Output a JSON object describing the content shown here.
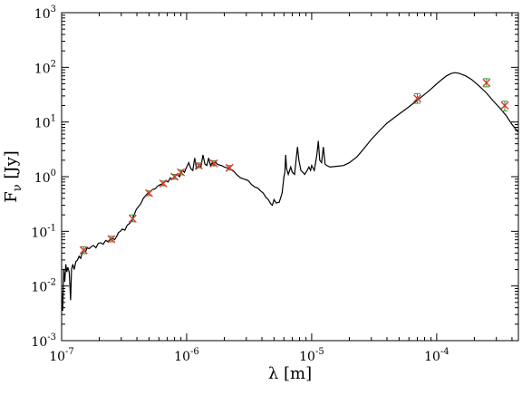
{
  "chart_data": {
    "type": "line",
    "title": "",
    "xlabel": "λ [m]",
    "ylabel": "F_ν [Jy]",
    "xscale": "log",
    "yscale": "log",
    "xlim": [
      1e-07,
      0.00045
    ],
    "ylim": [
      0.001,
      1000
    ],
    "grid": false,
    "x_ticks": [
      {
        "value": 1e-07,
        "mantissa": "10",
        "exponent": "-7"
      },
      {
        "value": 1e-06,
        "mantissa": "10",
        "exponent": "-6"
      },
      {
        "value": 1e-05,
        "mantissa": "10",
        "exponent": "-5"
      },
      {
        "value": 0.0001,
        "mantissa": "10",
        "exponent": "-4"
      }
    ],
    "y_ticks": [
      {
        "value": 0.001,
        "mantissa": "10",
        "exponent": "-3"
      },
      {
        "value": 0.01,
        "mantissa": "10",
        "exponent": "-2"
      },
      {
        "value": 0.1,
        "mantissa": "10",
        "exponent": "-1"
      },
      {
        "value": 1,
        "mantissa": "10",
        "exponent": "0"
      },
      {
        "value": 10,
        "mantissa": "10",
        "exponent": "1"
      },
      {
        "value": 100,
        "mantissa": "10",
        "exponent": "2"
      },
      {
        "value": 1000,
        "mantissa": "10",
        "exponent": "3"
      }
    ],
    "series": [
      {
        "kind": "line",
        "color": "#000000",
        "points": [
          [
            1e-07,
            0.008
          ],
          [
            1.02e-07,
            0.0035
          ],
          [
            1.04e-07,
            0.02
          ],
          [
            1.06e-07,
            0.012
          ],
          [
            1.08e-07,
            0.025
          ],
          [
            1.1e-07,
            0.018
          ],
          [
            1.12e-07,
            0.022
          ],
          [
            1.15e-07,
            0.018
          ],
          [
            1.18e-07,
            0.0055
          ],
          [
            1.2e-07,
            0.02
          ],
          [
            1.23e-07,
            0.025
          ],
          [
            1.26e-07,
            0.02
          ],
          [
            1.3e-07,
            0.028
          ],
          [
            1.34e-07,
            0.03
          ],
          [
            1.38e-07,
            0.035
          ],
          [
            1.42e-07,
            0.032
          ],
          [
            1.46e-07,
            0.04
          ],
          [
            1.5e-07,
            0.045
          ],
          [
            1.55e-07,
            0.042
          ],
          [
            1.6e-07,
            0.05
          ],
          [
            1.66e-07,
            0.048
          ],
          [
            1.72e-07,
            0.052
          ],
          [
            1.8e-07,
            0.055
          ],
          [
            1.88e-07,
            0.05
          ],
          [
            1.96e-07,
            0.06
          ],
          [
            2.05e-07,
            0.062
          ],
          [
            2.15e-07,
            0.058
          ],
          [
            2.25e-07,
            0.068
          ],
          [
            2.35e-07,
            0.065
          ],
          [
            2.45e-07,
            0.072
          ],
          [
            2.55e-07,
            0.075
          ],
          [
            2.65e-07,
            0.07
          ],
          [
            2.75e-07,
            0.08
          ],
          [
            2.85e-07,
            0.095
          ],
          [
            2.95e-07,
            0.1
          ],
          [
            3.05e-07,
            0.11
          ],
          [
            3.2e-07,
            0.105
          ],
          [
            3.35e-07,
            0.13
          ],
          [
            3.5e-07,
            0.14
          ],
          [
            3.65e-07,
            0.16
          ],
          [
            3.8e-07,
            0.2
          ],
          [
            3.95e-07,
            0.25
          ],
          [
            4.1e-07,
            0.28
          ],
          [
            4.3e-07,
            0.32
          ],
          [
            4.5e-07,
            0.4
          ],
          [
            4.7e-07,
            0.45
          ],
          [
            4.9e-07,
            0.5
          ],
          [
            5.1e-07,
            0.52
          ],
          [
            5.3e-07,
            0.58
          ],
          [
            5.6e-07,
            0.6
          ],
          [
            5.9e-07,
            0.68
          ],
          [
            6.2e-07,
            0.72
          ],
          [
            6.5e-07,
            0.75
          ],
          [
            6.8e-07,
            0.85
          ],
          [
            7.1e-07,
            0.8
          ],
          [
            7.4e-07,
            0.95
          ],
          [
            7.7e-07,
            0.9
          ],
          [
            8e-07,
            1.0
          ],
          [
            8.4e-07,
            1.1
          ],
          [
            8.8e-07,
            1.0
          ],
          [
            9.2e-07,
            1.3
          ],
          [
            9.6e-07,
            1.2
          ],
          [
            1e-06,
            1.5
          ],
          [
            1.04e-06,
            1.8
          ],
          [
            1.08e-06,
            1.4
          ],
          [
            1.12e-06,
            1.3
          ],
          [
            1.16e-06,
            2.2
          ],
          [
            1.2e-06,
            1.4
          ],
          [
            1.25e-06,
            1.6
          ],
          [
            1.3e-06,
            1.5
          ],
          [
            1.35e-06,
            2.5
          ],
          [
            1.4e-06,
            1.7
          ],
          [
            1.45e-06,
            1.6
          ],
          [
            1.5e-06,
            2.2
          ],
          [
            1.55e-06,
            1.6
          ],
          [
            1.6e-06,
            1.8
          ],
          [
            1.65e-06,
            1.6
          ],
          [
            1.7e-06,
            1.9
          ],
          [
            1.75e-06,
            1.7
          ],
          [
            1.8e-06,
            1.65
          ],
          [
            1.9e-06,
            1.6
          ],
          [
            2e-06,
            1.5
          ],
          [
            2.1e-06,
            1.45
          ],
          [
            2.2e-06,
            1.4
          ],
          [
            2.35e-06,
            1.3
          ],
          [
            2.5e-06,
            1.1
          ],
          [
            2.7e-06,
            0.95
          ],
          [
            2.9e-06,
            0.9
          ],
          [
            3.1e-06,
            0.85
          ],
          [
            3.3e-06,
            0.72
          ],
          [
            3.5e-06,
            0.65
          ],
          [
            3.7e-06,
            0.62
          ],
          [
            3.9e-06,
            0.55
          ],
          [
            4.1e-06,
            0.5
          ],
          [
            4.3e-06,
            0.42
          ],
          [
            4.5e-06,
            0.38
          ],
          [
            4.7e-06,
            0.32
          ],
          [
            4.85e-06,
            0.3
          ],
          [
            5e-06,
            0.38
          ],
          [
            5.2e-06,
            0.33
          ],
          [
            5.5e-06,
            0.34
          ],
          [
            5.8e-06,
            0.5
          ],
          [
            6e-06,
            1.0
          ],
          [
            6.1e-06,
            1.2
          ],
          [
            6.2e-06,
            2.5
          ],
          [
            6.3e-06,
            1.4
          ],
          [
            6.5e-06,
            1.1
          ],
          [
            6.8e-06,
            1.5
          ],
          [
            7e-06,
            1.2
          ],
          [
            7.3e-06,
            1.1
          ],
          [
            7.5e-06,
            2.0
          ],
          [
            7.7e-06,
            3.5
          ],
          [
            7.9e-06,
            2.0
          ],
          [
            8.2e-06,
            1.3
          ],
          [
            8.5e-06,
            1.2
          ],
          [
            8.8e-06,
            1.1
          ],
          [
            9.2e-06,
            1.3
          ],
          [
            9.5e-06,
            1.5
          ],
          [
            9.8e-06,
            1.3
          ],
          [
            1e-05,
            1.6
          ],
          [
            1.05e-05,
            1.3
          ],
          [
            1.1e-05,
            2.5
          ],
          [
            1.13e-05,
            4.5
          ],
          [
            1.16e-05,
            2.0
          ],
          [
            1.2e-05,
            1.8
          ],
          [
            1.24e-05,
            3.5
          ],
          [
            1.28e-05,
            1.7
          ],
          [
            1.32e-05,
            1.6
          ],
          [
            1.4e-05,
            1.5
          ],
          [
            1.6e-05,
            1.55
          ],
          [
            1.8e-05,
            1.6
          ],
          [
            2e-05,
            1.8
          ],
          [
            2.3e-05,
            2.3
          ],
          [
            2.6e-05,
            3.2
          ],
          [
            3e-05,
            4.8
          ],
          [
            3.5e-05,
            7.0
          ],
          [
            4e-05,
            9.5
          ],
          [
            5e-05,
            14
          ],
          [
            6e-05,
            19
          ],
          [
            7e-05,
            25
          ],
          [
            8e-05,
            32
          ],
          [
            9e-05,
            40
          ],
          [
            0.0001,
            50
          ],
          [
            0.00011,
            60
          ],
          [
            0.00012,
            70
          ],
          [
            0.00013,
            77
          ],
          [
            0.00014,
            80
          ],
          [
            0.00015,
            78
          ],
          [
            0.00017,
            70
          ],
          [
            0.00019,
            60
          ],
          [
            0.00022,
            45
          ],
          [
            0.00025,
            34
          ],
          [
            0.00028,
            25
          ],
          [
            0.00032,
            18
          ],
          [
            0.00036,
            13
          ],
          [
            0.0004,
            9
          ],
          [
            0.00045,
            6.5
          ]
        ]
      },
      {
        "kind": "scatter",
        "marker": "x",
        "color": "#e03030",
        "error_color": "#2a9d2a",
        "points": [
          {
            "x": 1.5e-07,
            "y": 0.045,
            "err_low": 0.039,
            "err_high": 0.052
          },
          {
            "x": 2.5e-07,
            "y": 0.072,
            "err_low": 0.064,
            "err_high": 0.081
          },
          {
            "x": 3.7e-07,
            "y": 0.17,
            "err_low": 0.15,
            "err_high": 0.2
          },
          {
            "x": 5e-07,
            "y": 0.5,
            "err_low": 0.45,
            "err_high": 0.55
          },
          {
            "x": 6.5e-07,
            "y": 0.75,
            "err_low": 0.68,
            "err_high": 0.83
          },
          {
            "x": 8e-07,
            "y": 1.0,
            "err_low": 0.9,
            "err_high": 1.1
          },
          {
            "x": 9e-07,
            "y": 1.2,
            "err_low": 1.08,
            "err_high": 1.32
          },
          {
            "x": 1.25e-06,
            "y": 1.6,
            "err_low": 1.45,
            "err_high": 1.78
          },
          {
            "x": 1.65e-06,
            "y": 1.75,
            "err_low": 1.58,
            "err_high": 1.95
          },
          {
            "x": 2.2e-06,
            "y": 1.45,
            "err_low": 1.32,
            "err_high": 1.6
          },
          {
            "x": 7e-05,
            "y": 27,
            "err_low": 22,
            "err_high": 33
          },
          {
            "x": 0.00025,
            "y": 52,
            "err_low": 44,
            "err_high": 62
          },
          {
            "x": 0.00035,
            "y": 20,
            "err_low": 16,
            "err_high": 24
          }
        ]
      }
    ]
  }
}
